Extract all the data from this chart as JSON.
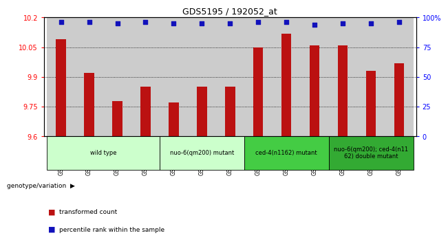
{
  "title": "GDS5195 / 192052_at",
  "samples": [
    "GSM1305989",
    "GSM1305990",
    "GSM1305991",
    "GSM1305992",
    "GSM1305996",
    "GSM1305997",
    "GSM1305998",
    "GSM1306002",
    "GSM1306003",
    "GSM1306004",
    "GSM1306008",
    "GSM1306009",
    "GSM1306010"
  ],
  "bar_values": [
    10.09,
    9.92,
    9.78,
    9.85,
    9.77,
    9.85,
    9.85,
    10.05,
    10.12,
    10.06,
    10.06,
    9.93,
    9.97
  ],
  "dot_values": [
    96,
    96,
    95,
    96,
    95,
    95,
    95,
    96,
    96,
    94,
    95,
    95,
    96
  ],
  "ylim_left": [
    9.6,
    10.2
  ],
  "ylim_right": [
    0,
    100
  ],
  "yticks_left": [
    9.6,
    9.75,
    9.9,
    10.05,
    10.2
  ],
  "ytick_labels_left": [
    "9.6",
    "9.75",
    "9.9",
    "10.05",
    "10.2"
  ],
  "yticks_right": [
    0,
    25,
    50,
    75,
    100
  ],
  "ytick_labels_right": [
    "0",
    "25",
    "50",
    "75",
    "100%"
  ],
  "bar_color": "#bb1111",
  "dot_color": "#1111bb",
  "groups": [
    {
      "label": "wild type",
      "indices": [
        0,
        1,
        2,
        3
      ],
      "color": "#ccffcc"
    },
    {
      "label": "nuo-6(qm200) mutant",
      "indices": [
        4,
        5,
        6
      ],
      "color": "#ccffcc"
    },
    {
      "label": "ced-4(n1162) mutant",
      "indices": [
        7,
        8,
        9
      ],
      "color": "#44cc44"
    },
    {
      "label": "nuo-6(qm200); ced-4(n11\n62) double mutant",
      "indices": [
        10,
        11,
        12
      ],
      "color": "#33aa33"
    }
  ],
  "col_bg_color": "#cccccc",
  "plot_bg_color": "#ffffff",
  "grid_color": "#000000",
  "legend_bar_label": "transformed count",
  "legend_dot_label": "percentile rank within the sample",
  "genotype_label": "genotype/variation"
}
